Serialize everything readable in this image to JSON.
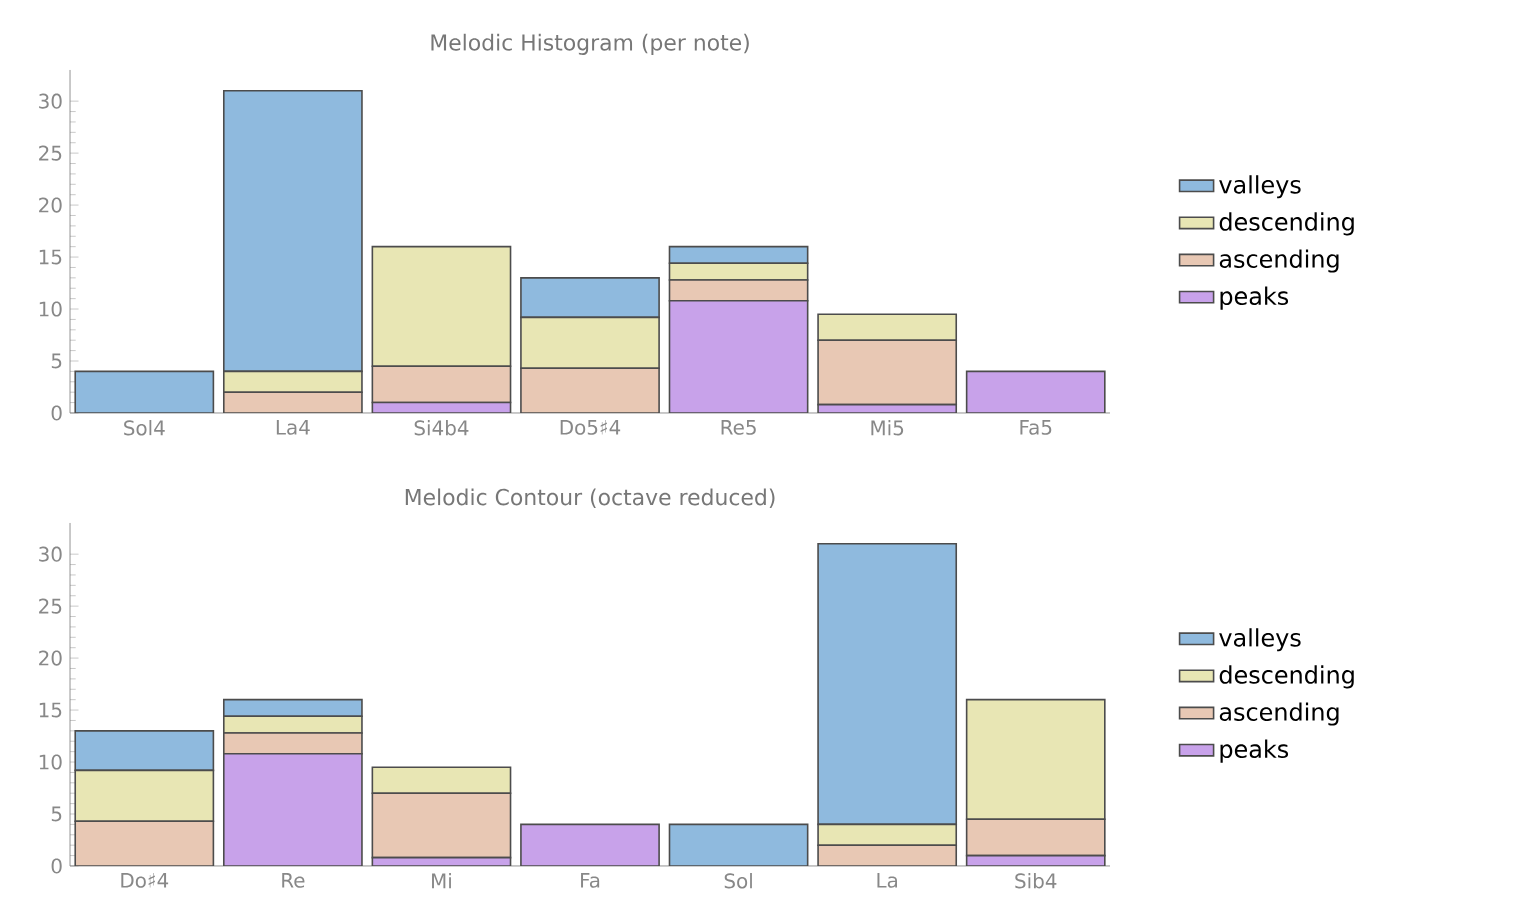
{
  "chart_data": [
    {
      "type": "bar",
      "stacked": true,
      "title": "Melodic Histogram (per note)",
      "categories": [
        "Sol4",
        "La4",
        "Si4b4",
        "Do5♯4",
        "Re5",
        "Mi5",
        "Fa5"
      ],
      "ylim": [
        0,
        33
      ],
      "yticks": [
        0,
        5,
        10,
        15,
        20,
        25,
        30
      ],
      "legend": "right",
      "series": [
        {
          "name": "peaks",
          "color": "#c8a2ea",
          "values": [
            0,
            0,
            1,
            0,
            10.8,
            0.8,
            4
          ]
        },
        {
          "name": "ascending",
          "color": "#e8c8b4",
          "values": [
            0,
            2,
            3.5,
            4.3,
            2,
            6.2,
            0
          ]
        },
        {
          "name": "descending",
          "color": "#e8e6b4",
          "values": [
            0,
            2,
            11.5,
            4.9,
            1.6,
            2.5,
            0
          ]
        },
        {
          "name": "valleys",
          "color": "#8fbade",
          "values": [
            4,
            27,
            0,
            3.8,
            1.6,
            0,
            0
          ]
        }
      ]
    },
    {
      "type": "bar",
      "stacked": true,
      "title": "Melodic Contour (octave reduced)",
      "categories": [
        "Do♯4",
        "Re",
        "Mi",
        "Fa",
        "Sol",
        "La",
        "Sib4"
      ],
      "ylim": [
        0,
        33
      ],
      "yticks": [
        0,
        5,
        10,
        15,
        20,
        25,
        30
      ],
      "legend": "right",
      "series": [
        {
          "name": "peaks",
          "color": "#c8a2ea",
          "values": [
            0,
            10.8,
            0.8,
            4,
            0,
            0,
            1
          ]
        },
        {
          "name": "ascending",
          "color": "#e8c8b4",
          "values": [
            4.3,
            2,
            6.2,
            0,
            0,
            2,
            3.5
          ]
        },
        {
          "name": "descending",
          "color": "#e8e6b4",
          "values": [
            4.9,
            1.6,
            2.5,
            0,
            0,
            2,
            11.5
          ]
        },
        {
          "name": "valleys",
          "color": "#8fbade",
          "values": [
            3.8,
            1.6,
            0,
            0,
            4,
            27,
            0
          ]
        }
      ]
    }
  ]
}
